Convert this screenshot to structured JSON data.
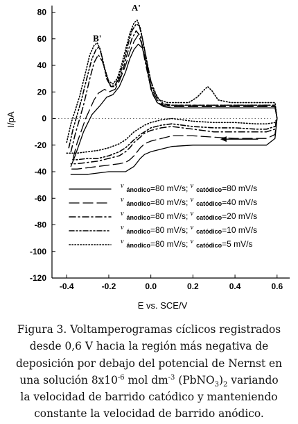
{
  "chart_data": {
    "type": "line",
    "title": "",
    "xlabel": "E vs. SCE/V",
    "ylabel": "I/pA",
    "xlim": [
      -0.47,
      0.66
    ],
    "ylim": [
      -120,
      85
    ],
    "xticks": [
      -0.4,
      -0.2,
      0.0,
      0.2,
      0.4,
      0.6
    ],
    "xtick_labels": [
      "-0.4",
      "-0.2",
      "0.0",
      "0.2",
      "0.4",
      "0.6"
    ],
    "yticks": [
      80,
      60,
      40,
      20,
      0,
      -20,
      -40,
      -60,
      -80,
      -100,
      -120
    ],
    "ytick_labels": [
      "80",
      "60",
      "40",
      "20",
      "0",
      "-20",
      "-40",
      "-60",
      "-80",
      "-100",
      "-120"
    ],
    "grid": false,
    "zero_line": "dotted",
    "legend_position": "bottom",
    "annotations": [
      {
        "text": "A'",
        "x": -0.07,
        "y": 81
      },
      {
        "text": "B'",
        "x": -0.255,
        "y": 58
      },
      {
        "text": "arrow",
        "x_from": 0.51,
        "x_to": 0.33,
        "y": -15.5
      }
    ],
    "series": [
      {
        "name": "ν ánodico=80 mV/s; ν catódico=80 mV/s",
        "style": "solid",
        "x": [
          -0.38,
          -0.36,
          -0.32,
          -0.28,
          -0.24,
          -0.21,
          -0.18,
          -0.15,
          -0.12,
          -0.1,
          -0.08,
          -0.06,
          -0.04,
          -0.02,
          0.0,
          0.03,
          0.06,
          0.1,
          0.2,
          0.3,
          0.45,
          0.55,
          0.59,
          0.6,
          0.59,
          0.55,
          0.5,
          0.4,
          0.3,
          0.2,
          0.1,
          0.05,
          0.0,
          -0.03,
          -0.05,
          -0.08,
          -0.1,
          -0.12,
          -0.15,
          -0.2,
          -0.25,
          -0.3,
          -0.35,
          -0.38
        ],
        "y": [
          -36,
          -28,
          -10,
          3,
          10,
          16,
          18,
          24,
          35,
          45,
          52,
          56,
          53,
          40,
          22,
          12,
          9,
          8,
          8,
          8,
          8,
          8,
          8,
          0,
          -15,
          -20,
          -20,
          -20,
          -20,
          -20,
          -21,
          -23,
          -25,
          -27,
          -30,
          -36,
          -38,
          -40,
          -40,
          -40,
          -41,
          -42,
          -42,
          -42
        ]
      },
      {
        "name": "ν ánodico=80 mV/s; ν catódico=40 mV/s",
        "style": "long-dash",
        "x": [
          -0.37,
          -0.35,
          -0.31,
          -0.27,
          -0.25,
          -0.22,
          -0.2,
          -0.17,
          -0.15,
          -0.12,
          -0.1,
          -0.08,
          -0.06,
          -0.04,
          -0.02,
          0.0,
          0.03,
          0.06,
          0.1,
          0.2,
          0.3,
          0.45,
          0.55,
          0.59,
          0.6,
          0.59,
          0.55,
          0.5,
          0.4,
          0.3,
          0.2,
          0.1,
          0.05,
          0.0,
          -0.03,
          -0.05,
          -0.08,
          -0.1,
          -0.12,
          -0.15,
          -0.2,
          -0.25,
          -0.3,
          -0.35,
          -0.38
        ],
        "y": [
          -30,
          -18,
          0,
          14,
          19,
          22,
          20,
          22,
          28,
          40,
          50,
          58,
          63,
          55,
          40,
          24,
          14,
          10,
          9,
          9,
          9,
          9,
          9,
          9,
          0,
          -12,
          -15,
          -15,
          -15,
          -14,
          -13,
          -13,
          -15,
          -17,
          -19,
          -22,
          -28,
          -31,
          -33,
          -34,
          -35,
          -36,
          -37,
          -38,
          -38
        ]
      },
      {
        "name": "ν ánodico=80 mV/s; ν catódico=20 mV/s",
        "style": "dash-dot",
        "x": [
          -0.38,
          -0.36,
          -0.32,
          -0.29,
          -0.27,
          -0.25,
          -0.23,
          -0.21,
          -0.19,
          -0.17,
          -0.15,
          -0.13,
          -0.11,
          -0.09,
          -0.07,
          -0.05,
          -0.03,
          -0.01,
          0.01,
          0.03,
          0.06,
          0.1,
          0.2,
          0.3,
          0.45,
          0.55,
          0.59,
          0.6,
          0.59,
          0.55,
          0.5,
          0.4,
          0.3,
          0.2,
          0.1,
          0.05,
          0.0,
          -0.03,
          -0.05,
          -0.08,
          -0.1,
          -0.12,
          -0.15,
          -0.2,
          -0.25,
          -0.3,
          -0.35,
          -0.38
        ],
        "y": [
          -25,
          -12,
          10,
          30,
          42,
          48,
          43,
          32,
          24,
          24,
          30,
          38,
          50,
          60,
          66,
          62,
          45,
          30,
          18,
          12,
          10,
          10,
          10,
          10,
          10,
          10,
          10,
          0,
          -8,
          -10,
          -10,
          -10,
          -10,
          -8,
          -6,
          -7,
          -9,
          -11,
          -14,
          -18,
          -22,
          -25,
          -28,
          -30,
          -32,
          -33,
          -34,
          -34
        ]
      },
      {
        "name": "ν ánodico=80 mV/s; ν catódico=10 mV/s",
        "style": "dash-dot-dot",
        "x": [
          -0.39,
          -0.37,
          -0.33,
          -0.3,
          -0.28,
          -0.26,
          -0.245,
          -0.23,
          -0.21,
          -0.19,
          -0.17,
          -0.15,
          -0.13,
          -0.11,
          -0.09,
          -0.07,
          -0.055,
          -0.04,
          -0.02,
          0.0,
          0.03,
          0.06,
          0.1,
          0.2,
          0.3,
          0.45,
          0.55,
          0.59,
          0.6,
          0.59,
          0.55,
          0.5,
          0.4,
          0.3,
          0.2,
          0.1,
          0.05,
          0.0,
          -0.03,
          -0.05,
          -0.08,
          -0.1,
          -0.12,
          -0.15,
          -0.2,
          -0.25,
          -0.3,
          -0.35,
          -0.38
        ],
        "y": [
          -22,
          -8,
          14,
          33,
          45,
          52,
          54,
          45,
          30,
          24,
          25,
          32,
          42,
          55,
          66,
          71,
          70,
          60,
          44,
          28,
          16,
          11,
          10,
          10,
          10,
          10,
          10,
          10,
          0,
          -6,
          -8,
          -8,
          -7,
          -7,
          -6,
          -4,
          -5,
          -7,
          -10,
          -12,
          -16,
          -19,
          -22,
          -25,
          -28,
          -30,
          -30,
          -31,
          -31
        ]
      },
      {
        "name": "ν ánodico=80 mV/s; ν catódico=5 mV/s",
        "style": "dotted",
        "x": [
          -0.4,
          -0.38,
          -0.34,
          -0.31,
          -0.29,
          -0.27,
          -0.255,
          -0.24,
          -0.22,
          -0.2,
          -0.18,
          -0.16,
          -0.14,
          -0.12,
          -0.1,
          -0.08,
          -0.065,
          -0.05,
          -0.03,
          -0.01,
          0.01,
          0.04,
          0.08,
          0.12,
          0.18,
          0.22,
          0.25,
          0.27,
          0.29,
          0.32,
          0.38,
          0.45,
          0.55,
          0.59,
          0.6,
          0.59,
          0.55,
          0.5,
          0.4,
          0.3,
          0.2,
          0.1,
          0.05,
          0.0,
          -0.03,
          -0.05,
          -0.08,
          -0.1,
          -0.12,
          -0.15,
          -0.2,
          -0.25,
          -0.3,
          -0.35,
          -0.4
        ],
        "y": [
          -18,
          -4,
          16,
          35,
          48,
          55,
          57,
          52,
          38,
          28,
          26,
          30,
          40,
          52,
          64,
          72,
          74,
          68,
          52,
          35,
          22,
          14,
          12,
          12,
          12,
          16,
          21,
          24,
          21,
          14,
          12,
          12,
          12,
          12,
          0,
          -3,
          -4,
          -4,
          -3,
          -3,
          -2,
          0,
          -1,
          -3,
          -5,
          -7,
          -10,
          -13,
          -16,
          -19,
          -22,
          -24,
          -25,
          -26,
          -26
        ]
      }
    ]
  },
  "caption": {
    "line1": "Figura 3. Voltamperogramas cíclicos registrados",
    "line2": "desde 0,6 V hacia la región más negativa de",
    "line3": "deposición por debajo del potencial de Nernst en",
    "line4_a": "una solución 8x10",
    "line4_exp1": "-6",
    "line4_b": " mol dm",
    "line4_exp2": "-3",
    "line4_c": " (PbNO",
    "line4_sub1": "3",
    "line4_d": ")",
    "line4_sub2": "2",
    "line4_e": " variando",
    "line5": "la velocidad de barrido catódico y manteniendo",
    "line6": "constante la velocidad de barrido anódico."
  }
}
